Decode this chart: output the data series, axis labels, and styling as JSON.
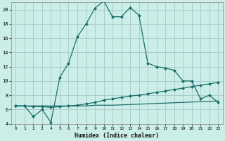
{
  "title": "",
  "xlabel": "Humidex (Indice chaleur)",
  "bg_color": "#cceee8",
  "grid_color": "#aacccc",
  "line_color": "#1a6e6a",
  "x_values": [
    0,
    1,
    2,
    3,
    4,
    5,
    6,
    7,
    8,
    9,
    10,
    11,
    12,
    13,
    14,
    15,
    16,
    17,
    18,
    19,
    20,
    21,
    22,
    23
  ],
  "line1": [
    6.5,
    6.5,
    5.0,
    6.0,
    4.2,
    10.5,
    12.5,
    16.2,
    18.0,
    20.2,
    21.2,
    19.0,
    19.0,
    20.3,
    19.2,
    12.5,
    12.0,
    11.8,
    11.5,
    10.0,
    10.0,
    7.5,
    8.0,
    7.0
  ],
  "line2": [
    6.5,
    6.5,
    6.4,
    6.4,
    6.3,
    6.4,
    6.5,
    6.6,
    6.8,
    7.0,
    7.3,
    7.5,
    7.7,
    7.9,
    8.0,
    8.2,
    8.4,
    8.6,
    8.8,
    9.0,
    9.2,
    9.4,
    9.6,
    9.8
  ],
  "line3": [
    6.5,
    6.5,
    6.5,
    6.5,
    6.5,
    6.5,
    6.5,
    6.5,
    6.5,
    6.6,
    6.6,
    6.6,
    6.65,
    6.7,
    6.75,
    6.8,
    6.85,
    6.9,
    6.95,
    7.0,
    7.05,
    7.1,
    7.15,
    7.2
  ],
  "ylim": [
    4,
    21
  ],
  "xlim": [
    -0.5,
    23.5
  ],
  "yticks": [
    4,
    6,
    8,
    10,
    12,
    14,
    16,
    18,
    20
  ],
  "xticks": [
    0,
    1,
    2,
    3,
    4,
    5,
    6,
    7,
    8,
    9,
    10,
    11,
    12,
    13,
    14,
    15,
    16,
    17,
    18,
    19,
    20,
    21,
    22,
    23
  ]
}
